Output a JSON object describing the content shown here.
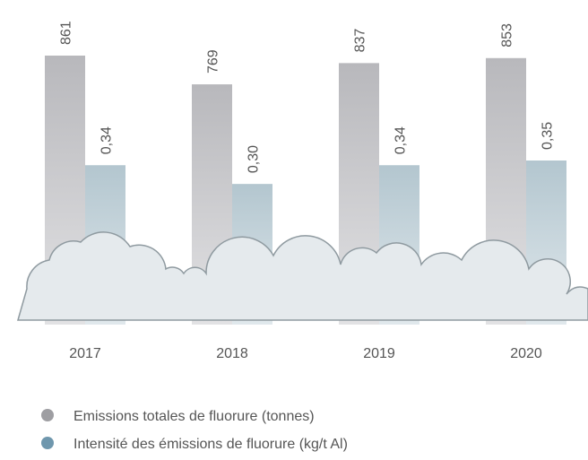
{
  "chart_data": {
    "type": "bar",
    "categories": [
      "2017",
      "2018",
      "2019",
      "2020"
    ],
    "series": [
      {
        "name": "Emissions totales de fluorure (tonnes)",
        "color": "#9e9ea2",
        "values": [
          861,
          769,
          837,
          853
        ]
      },
      {
        "name": "Intensité des émissions de fluorure (kg/t Al)",
        "color": "#6f97ad",
        "values": [
          0.34,
          0.3,
          0.34,
          0.35
        ],
        "value_labels": [
          "0,34",
          "0,30",
          "0,34",
          "0,35"
        ]
      }
    ]
  }
}
